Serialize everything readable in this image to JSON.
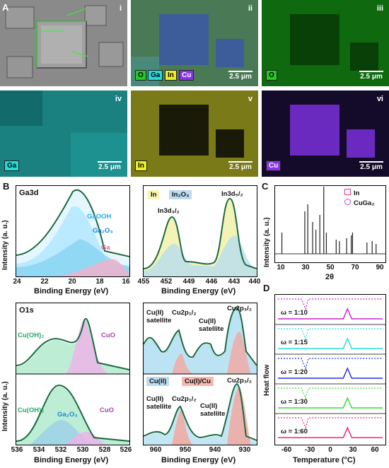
{
  "panel_letters": {
    "a": "A",
    "b": "B",
    "c": "C",
    "d": "D"
  },
  "eds": {
    "scalebar": "2.5 μm",
    "tiles": [
      {
        "roman": "i"
      },
      {
        "roman": "ii",
        "legend": [
          "O",
          "Ga",
          "In",
          "Cu"
        ]
      },
      {
        "roman": "iii",
        "element": "O"
      },
      {
        "roman": "iv",
        "element": "Ga"
      },
      {
        "roman": "v",
        "element": "In"
      },
      {
        "roman": "vi",
        "element": "Cu"
      }
    ],
    "colors": {
      "O": "#22cc22",
      "Ga": "#22dddd",
      "In": "#eeee22",
      "Cu": "#8833ee"
    }
  },
  "xps": {
    "ga3d": {
      "title": "Ga3d",
      "xticks": [
        "24",
        "22",
        "20",
        "18",
        "16"
      ],
      "xlabel": "Binding Energy (eV)",
      "ylabel": "Intensity (a. u.)",
      "annotations": [
        "GaOOH",
        "Ga₂O₃",
        "Ga"
      ]
    },
    "in3d": {
      "legend": [
        "In",
        "In₂O₃"
      ],
      "peaks": [
        "In3d₃/₂",
        "In3d₅/₂"
      ],
      "xticks": [
        "455",
        "452",
        "449",
        "446",
        "443",
        "440"
      ],
      "xlabel": "Binding Energy (eV)"
    },
    "o1s": {
      "title": "O1s",
      "top_annotations": [
        "Cu(OH)₂",
        "CuO"
      ],
      "bottom_annotations": [
        "Cu(OH)₂",
        "Ga₂O₃",
        "CuO"
      ],
      "xticks": [
        "536",
        "534",
        "532",
        "530",
        "528",
        "526"
      ],
      "xlabel": "Binding Energy (eV)",
      "ylabel": "Intensity (a. u.)"
    },
    "cu2p": {
      "top_annotations": [
        "Cu(II) satellite",
        "Cu2p₁/₂",
        "Cu(II) satellite",
        "Cu2p₃/₂"
      ],
      "legend": [
        "Cu(II)",
        "Cu(I)/Cu"
      ],
      "bottom_annotations": [
        "Cu(II) satellite",
        "Cu2p₁/₂",
        "Cu(II) satellite",
        "Cu2p₃/₂"
      ],
      "xticks": [
        "960",
        "950",
        "940",
        "930"
      ],
      "xlabel": "Binding Energy (eV)"
    }
  },
  "chart_data": [
    {
      "type": "scatter",
      "title": "",
      "xlabel": "2θ",
      "ylabel": "Intensity (a. u.)",
      "xticks": [
        "10",
        "30",
        "50",
        "70",
        "90"
      ],
      "legend": [
        "In",
        "CuGa₂"
      ],
      "x_range": [
        10,
        90
      ],
      "peaks_x": [
        13,
        30.5,
        32.8,
        36.5,
        39,
        42,
        45,
        47,
        54.5,
        57,
        62.5,
        66,
        67,
        78,
        82,
        85
      ]
    },
    {
      "type": "line",
      "title": "",
      "xlabel": "Temperature (°C)",
      "ylabel": "Heat flow",
      "xticks": [
        "-60",
        "-30",
        "0",
        "30",
        "60"
      ],
      "x_range": [
        -70,
        70
      ],
      "series": [
        {
          "name": "ω = 1:10",
          "color": "#cc22cc"
        },
        {
          "name": "ω = 1:15",
          "color": "#22dddd"
        },
        {
          "name": "ω = 1:20",
          "color": "#2233dd"
        },
        {
          "name": "ω = 1:30",
          "color": "#33dd33"
        },
        {
          "name": "ω = 1:60",
          "color": "#ee2277"
        }
      ],
      "exo_peak_x": -33,
      "endo_peak_x": 23
    }
  ]
}
